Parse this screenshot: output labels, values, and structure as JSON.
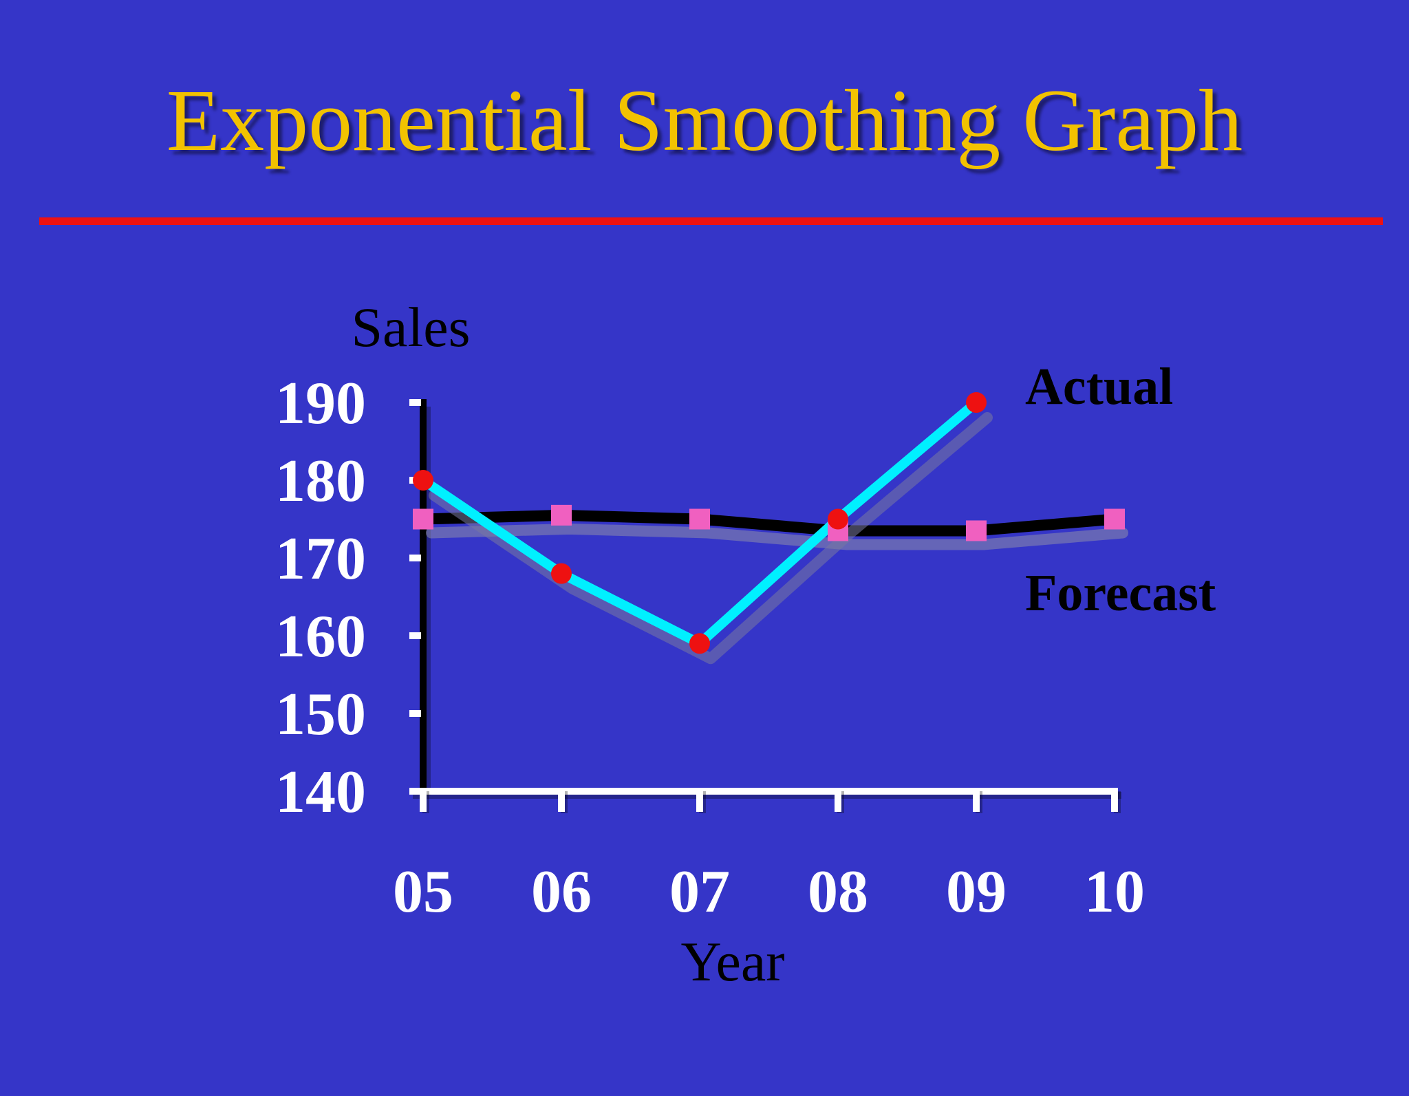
{
  "title": "Exponential Smoothing Graph",
  "colors": {
    "background": "#3535c8",
    "title": "#f2c200",
    "divider": "#ee1111",
    "actual_line": "#00f0ff",
    "actual_marker": "#ee1111",
    "forecast_line": "#000000",
    "forecast_marker": "#f060c0",
    "x_axis": "#ffffff",
    "y_axis": "#000000"
  },
  "chart_data": {
    "type": "line",
    "ylabel": "Sales",
    "xlabel": "Year",
    "categories": [
      "05",
      "06",
      "07",
      "08",
      "09",
      "10"
    ],
    "y_ticks": [
      "190",
      "180",
      "170",
      "160",
      "150",
      "140"
    ],
    "ylim": [
      140,
      190
    ],
    "grid": false,
    "series": [
      {
        "name": "Actual",
        "marker": "circle",
        "values": [
          180,
          168,
          159,
          175,
          190,
          null
        ]
      },
      {
        "name": "Forecast",
        "marker": "square",
        "values": [
          175,
          175.5,
          175,
          173.5,
          173.5,
          175
        ]
      }
    ]
  }
}
